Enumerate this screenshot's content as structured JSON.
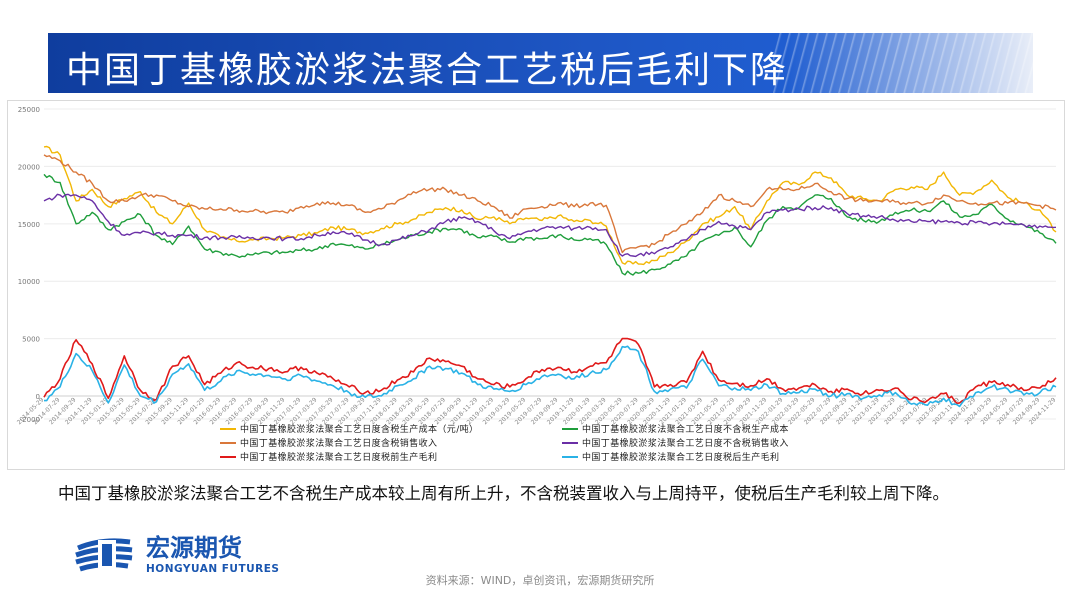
{
  "slide": {
    "title": "中国丁基橡胶淤浆法聚合工艺税后毛利下降",
    "caption": "中国丁基橡胶淤浆法聚合工艺不含税生产成本较上周有所上升，不含税装置收入与上周持平，使税后生产毛利较上周下降。",
    "source": "资料来源：WIND，卓创资讯，宏源期货研究所",
    "logo": {
      "cn": "宏源期货",
      "en": "HONGYUAN FUTURES"
    }
  },
  "colors": {
    "banner": "#1a4fb8",
    "series_yellow": "#f2b705",
    "series_green": "#1f9e3c",
    "series_orange": "#d9773a",
    "series_purple": "#6a2fa6",
    "series_red": "#e01a1a",
    "series_cyan": "#2ab2e6",
    "logo_blue": "#1a56b0"
  },
  "chart_data": {
    "type": "line",
    "ylim": [
      -2000,
      25000
    ],
    "yticks": [
      "25000",
      "20000",
      "15000",
      "10000",
      "5000",
      "0",
      "-2000"
    ],
    "x": [
      "2014-05-29",
      "2014-07-29",
      "2014-09-29",
      "2014-11-29",
      "2015-01-29",
      "2015-03-29",
      "2015-05-29",
      "2015-07-29",
      "2015-09-29",
      "2015-11-29",
      "2016-01-29",
      "2016-03-29",
      "2016-05-29",
      "2016-07-29",
      "2016-09-29",
      "2016-11-29",
      "2017-01-29",
      "2017-03-29",
      "2017-05-29",
      "2017-07-29",
      "2017-09-29",
      "2017-11-29",
      "2018-01-29",
      "2018-03-29",
      "2018-05-29",
      "2018-07-29",
      "2018-09-29",
      "2018-11-29",
      "2019-01-29",
      "2019-03-29",
      "2019-05-29",
      "2019-07-29",
      "2019-09-29",
      "2019-11-29",
      "2020-01-29",
      "2020-03-29",
      "2020-05-29",
      "2020-07-29",
      "2020-09-29",
      "2020-11-29",
      "2021-01-29",
      "2021-03-29",
      "2021-05-29",
      "2021-07-29",
      "2021-09-29",
      "2021-11-29",
      "2022-01-29",
      "2022-03-29",
      "2022-05-29",
      "2022-07-29",
      "2022-09-29",
      "2022-11-29",
      "2023-01-29",
      "2023-03-29",
      "2023-05-29",
      "2023-07-29",
      "2023-09-29",
      "2023-11-29",
      "2024-01-29",
      "2024-03-29",
      "2024-05-29",
      "2024-07-29",
      "2024-09-29",
      "2024-11-29"
    ],
    "series": [
      {
        "name": "中国丁基橡胶淤浆法聚合工艺日度含税生产成本（元/吨）",
        "color": "#f2b705",
        "values": [
          21700,
          21000,
          17000,
          18000,
          16500,
          17200,
          17800,
          16000,
          15000,
          16800,
          14500,
          13800,
          13500,
          13600,
          13700,
          13800,
          14000,
          14200,
          14700,
          14500,
          14200,
          14600,
          15000,
          15400,
          16000,
          16400,
          16200,
          15400,
          15600,
          15000,
          15500,
          15300,
          15700,
          15200,
          15300,
          14800,
          11600,
          11500,
          11800,
          12500,
          13500,
          15000,
          15600,
          16500,
          14500,
          17000,
          18600,
          18400,
          19500,
          19000,
          17500,
          17200,
          17000,
          18000,
          18200,
          18000,
          19500,
          17500,
          17800,
          18800,
          17300,
          16800,
          16200,
          14300
        ]
      },
      {
        "name": "中国丁基橡胶淤浆法聚合工艺日度不含税生产成本",
        "color": "#1f9e3c",
        "values": [
          19300,
          18600,
          15000,
          16000,
          14500,
          15200,
          15800,
          14000,
          13200,
          14800,
          12800,
          12500,
          12200,
          12300,
          12500,
          12500,
          12700,
          12800,
          13300,
          13100,
          12800,
          13200,
          13600,
          14000,
          14300,
          14600,
          14500,
          13800,
          13900,
          13400,
          13800,
          13700,
          14000,
          13600,
          13700,
          13200,
          10700,
          10700,
          11000,
          11500,
          12200,
          13500,
          14000,
          14700,
          13000,
          15300,
          16500,
          16400,
          17500,
          17200,
          15600,
          15300,
          15200,
          16000,
          16200,
          16100,
          17000,
          15600,
          15800,
          16700,
          15400,
          14900,
          14200,
          13300
        ]
      },
      {
        "name": "中国丁基橡胶淤浆法聚合工艺日度含税销售收入",
        "color": "#d9773a",
        "values": [
          21000,
          20500,
          19500,
          18500,
          17000,
          17000,
          17500,
          17500,
          17000,
          16500,
          16300,
          16300,
          16200,
          16100,
          16000,
          16000,
          16500,
          16800,
          16800,
          16600,
          16000,
          16300,
          17000,
          17800,
          18000,
          18000,
          17500,
          17000,
          16500,
          15500,
          16300,
          16500,
          16800,
          16500,
          16800,
          16600,
          12500,
          13000,
          13200,
          14200,
          15000,
          16000,
          17500,
          17000,
          16500,
          18000,
          18000,
          18000,
          18500,
          17800,
          17200,
          17000,
          17000,
          16900,
          16800,
          16800,
          17500,
          17000,
          16800,
          16800,
          16800,
          16800,
          16600,
          16200
        ]
      },
      {
        "name": "中国丁基橡胶淤浆法聚合工艺日度不含税销售收入",
        "color": "#6a2fa6",
        "values": [
          17000,
          17500,
          17500,
          17000,
          15200,
          14000,
          14200,
          14200,
          14000,
          14000,
          13800,
          13800,
          13800,
          13800,
          13800,
          13700,
          13700,
          14000,
          14300,
          14100,
          13600,
          13200,
          13600,
          14000,
          14500,
          15200,
          15500,
          15200,
          14400,
          13700,
          14300,
          14600,
          14700,
          14600,
          14700,
          14500,
          12200,
          12300,
          12400,
          13000,
          13600,
          14500,
          15200,
          14800,
          14500,
          16000,
          16200,
          16300,
          16400,
          16400,
          15900,
          15700,
          15600,
          15300,
          15200,
          15200,
          15200,
          15100,
          15100,
          15000,
          15000,
          14900,
          14800,
          14700
        ]
      },
      {
        "name": "中国丁基橡胶淤浆法聚合工艺日度税前生产毛利",
        "color": "#e01a1a",
        "values": [
          -100,
          1500,
          4900,
          2800,
          -200,
          3500,
          500,
          -300,
          2600,
          3500,
          1000,
          2000,
          2900,
          2500,
          2400,
          2100,
          2500,
          2000,
          1500,
          800,
          300,
          500,
          1400,
          2100,
          3300,
          3000,
          2600,
          1500,
          1000,
          800,
          1500,
          2300,
          2500,
          2100,
          2600,
          2900,
          5000,
          4500,
          800,
          1000,
          1200,
          3900,
          1400,
          1100,
          900,
          1500,
          600,
          700,
          1000,
          400,
          600,
          200,
          500,
          700,
          -300,
          -400,
          200,
          -600,
          800,
          1200,
          1000,
          500,
          700,
          1600
        ]
      },
      {
        "name": "中国丁基橡胶淤浆法聚合工艺日度税后生产毛利",
        "color": "#2ab2e6",
        "values": [
          -400,
          800,
          3700,
          2200,
          -600,
          2700,
          0,
          -500,
          1900,
          2800,
          500,
          1300,
          2200,
          1900,
          1800,
          1500,
          1800,
          1300,
          900,
          300,
          -100,
          0,
          900,
          1500,
          2600,
          2400,
          2000,
          1000,
          600,
          400,
          1000,
          1700,
          1900,
          1500,
          2000,
          2300,
          4300,
          3900,
          400,
          600,
          700,
          3200,
          900,
          700,
          500,
          1000,
          200,
          300,
          600,
          0,
          200,
          -200,
          100,
          300,
          -700,
          -800,
          -200,
          -900,
          300,
          800,
          600,
          100,
          300,
          800
        ]
      }
    ]
  }
}
